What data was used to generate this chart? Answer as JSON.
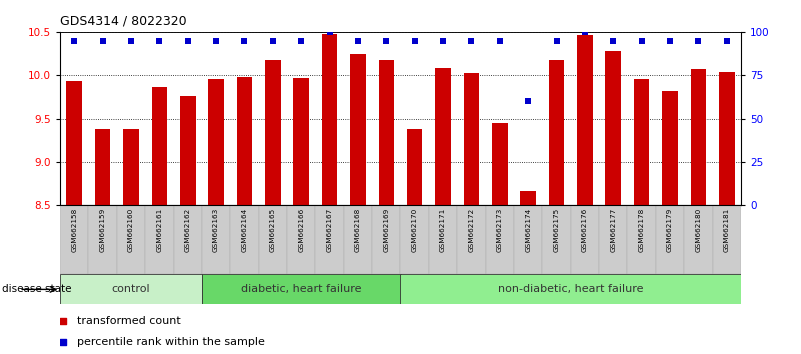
{
  "title": "GDS4314 / 8022320",
  "samples": [
    "GSM662158",
    "GSM662159",
    "GSM662160",
    "GSM662161",
    "GSM662162",
    "GSM662163",
    "GSM662164",
    "GSM662165",
    "GSM662166",
    "GSM662167",
    "GSM662168",
    "GSM662169",
    "GSM662170",
    "GSM662171",
    "GSM662172",
    "GSM662173",
    "GSM662174",
    "GSM662175",
    "GSM662176",
    "GSM662177",
    "GSM662178",
    "GSM662179",
    "GSM662180",
    "GSM662181"
  ],
  "bar_values": [
    9.93,
    9.38,
    9.38,
    9.86,
    9.76,
    9.96,
    9.98,
    10.18,
    9.97,
    10.48,
    10.25,
    10.18,
    9.38,
    10.08,
    10.02,
    9.45,
    8.67,
    10.18,
    10.46,
    10.28,
    9.96,
    9.82,
    10.07,
    10.04
  ],
  "percentile_values": [
    95,
    95,
    95,
    95,
    95,
    95,
    95,
    95,
    95,
    100,
    95,
    95,
    95,
    95,
    95,
    95,
    60,
    95,
    100,
    95,
    95,
    95,
    95,
    95
  ],
  "group_boundaries": [
    0,
    5,
    12,
    24
  ],
  "group_labels": [
    "control",
    "diabetic, heart failure",
    "non-diabetic, heart failure"
  ],
  "group_colors": [
    "#c8f0c8",
    "#68d868",
    "#90ee90"
  ],
  "ylim_left": [
    8.5,
    10.5
  ],
  "yticks_left": [
    8.5,
    9.0,
    9.5,
    10.0,
    10.5
  ],
  "ylim_right": [
    0,
    100
  ],
  "yticks_right": [
    0,
    25,
    50,
    75,
    100
  ],
  "bar_color": "#CC0000",
  "dot_color": "#0000CC",
  "bar_width": 0.55,
  "legend_items": [
    "transformed count",
    "percentile rank within the sample"
  ],
  "disease_state_label": "disease state"
}
